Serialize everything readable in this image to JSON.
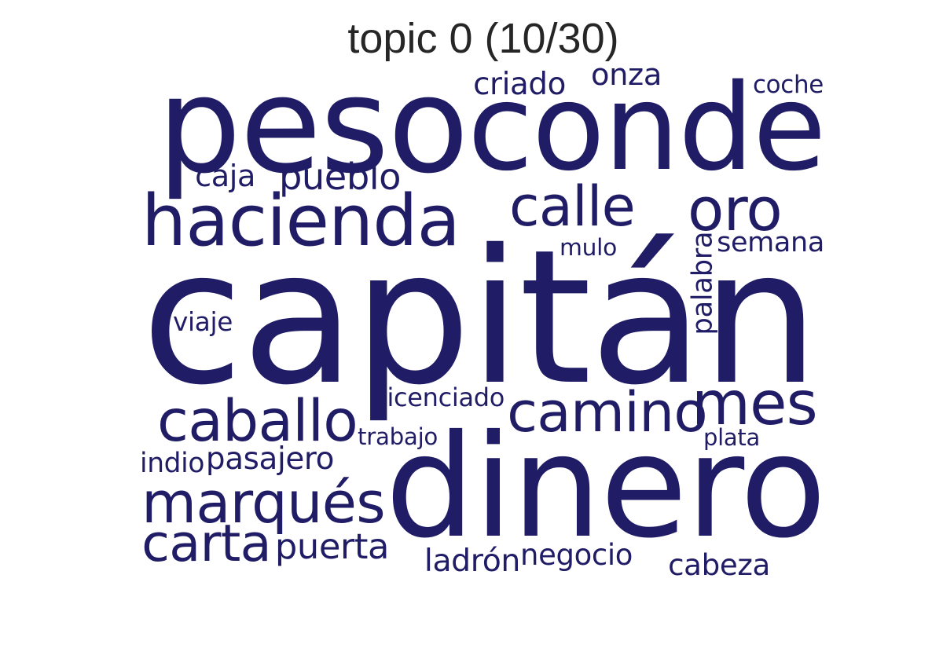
{
  "title": "topic 0 (10/30)",
  "color": "#201d66",
  "words": [
    {
      "text": "capitán"
    },
    {
      "text": "dinero"
    },
    {
      "text": "peso"
    },
    {
      "text": "conde"
    },
    {
      "text": "hacienda"
    },
    {
      "text": "caballo"
    },
    {
      "text": "camino"
    },
    {
      "text": "marqués"
    },
    {
      "text": "calle"
    },
    {
      "text": "oro"
    },
    {
      "text": "mes"
    },
    {
      "text": "carta"
    },
    {
      "text": "pueblo"
    },
    {
      "text": "puerta"
    },
    {
      "text": "criado"
    },
    {
      "text": "ladrón"
    },
    {
      "text": "negocio"
    },
    {
      "text": "cabeza"
    },
    {
      "text": "onza"
    },
    {
      "text": "pasajero"
    },
    {
      "text": "semana"
    },
    {
      "text": "licenciado"
    },
    {
      "text": "caja"
    },
    {
      "text": "coche"
    },
    {
      "text": "palabra"
    },
    {
      "text": "trabajo"
    },
    {
      "text": "viaje"
    },
    {
      "text": "indio"
    },
    {
      "text": "plata"
    },
    {
      "text": "mulo"
    }
  ]
}
